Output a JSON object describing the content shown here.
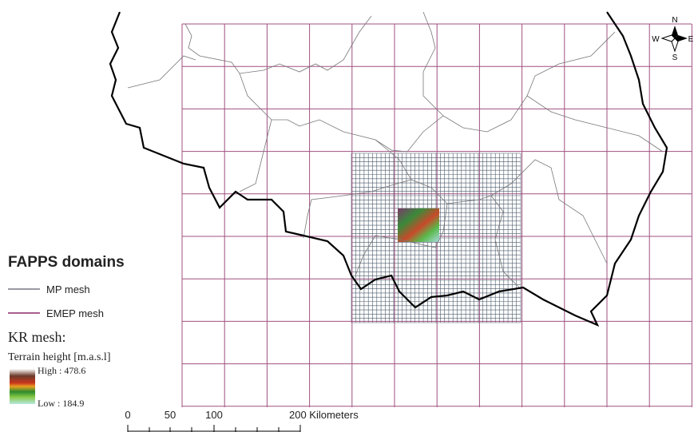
{
  "legend": {
    "title": "FAPPS domains",
    "items": [
      {
        "label": "MP mesh"
      },
      {
        "label": "EMEP mesh"
      }
    ],
    "kr_title": "KR mesh:",
    "kr_subtitle": "Terrain height [m.a.s.l]",
    "high_label": "High : 478.6",
    "low_label": "Low : 184.9"
  },
  "scale_bar": {
    "labels": [
      "0",
      "50",
      "100",
      "200 Kilometers"
    ]
  },
  "compass": {
    "north": "N",
    "south": "S",
    "west": "W",
    "east": "E"
  }
}
